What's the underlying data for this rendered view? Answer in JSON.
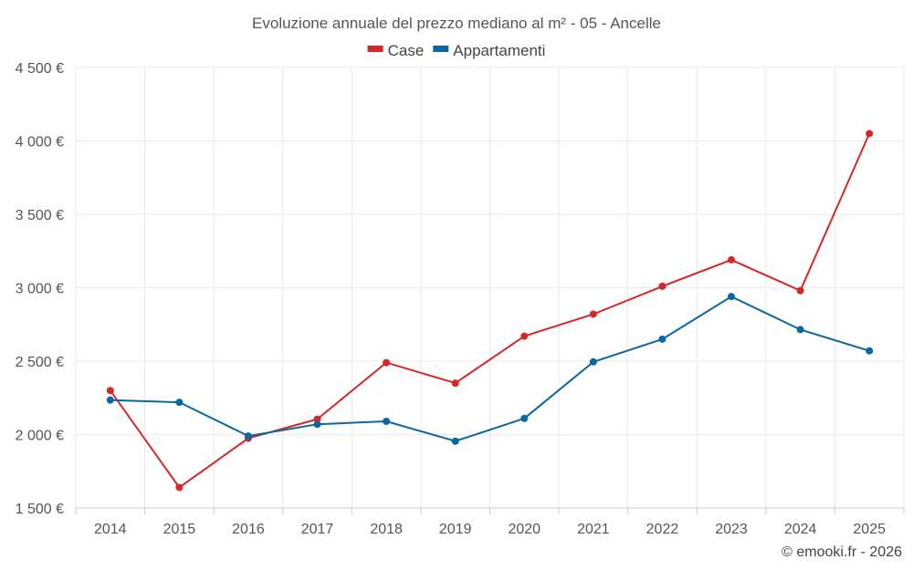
{
  "chart_data": {
    "type": "line",
    "title": "Evoluzione annuale del prezzo mediano al m² - 05 - Ancelle",
    "xlabel": "",
    "ylabel": "",
    "categories": [
      "2014",
      "2015",
      "2016",
      "2017",
      "2018",
      "2019",
      "2020",
      "2021",
      "2022",
      "2023",
      "2024",
      "2025"
    ],
    "ylim": [
      1500,
      4500
    ],
    "yticks": [
      1500,
      2000,
      2500,
      3000,
      3500,
      4000,
      4500
    ],
    "ytick_labels": [
      "1 500 €",
      "2 000 €",
      "2 500 €",
      "3 000 €",
      "3 500 €",
      "4 000 €",
      "4 500 €"
    ],
    "grid": true,
    "legend_position": "top-center",
    "series": [
      {
        "name": "Case",
        "color": "#d62728",
        "values": [
          2300,
          1640,
          1975,
          2105,
          2490,
          2350,
          2670,
          2820,
          3010,
          3190,
          2980,
          4050
        ]
      },
      {
        "name": "Appartamenti",
        "color": "#0a67a0",
        "values": [
          2235,
          2220,
          1990,
          2070,
          2090,
          1955,
          2110,
          2495,
          2650,
          2940,
          2715,
          2570
        ]
      }
    ]
  },
  "credit": "© emooki.fr - 2026"
}
